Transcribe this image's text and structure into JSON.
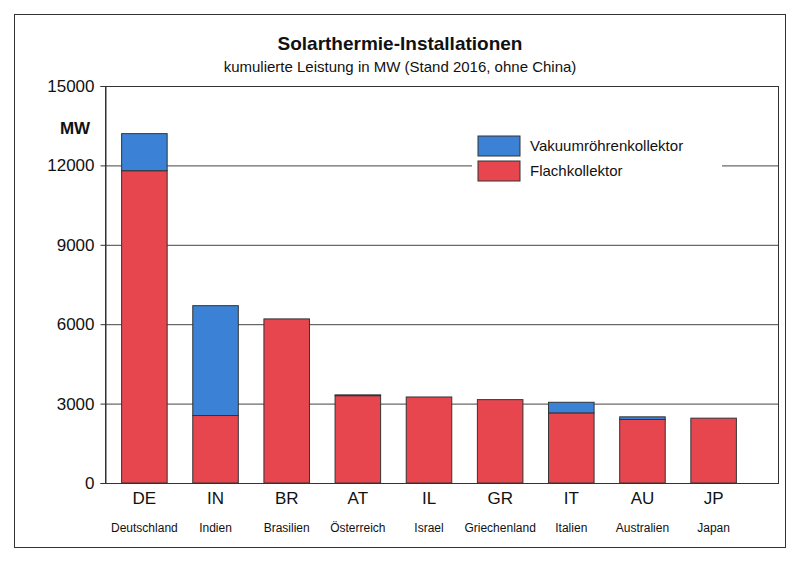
{
  "chart_data": {
    "type": "bar",
    "title": "Solarthermie-Installationen",
    "subtitle": "kumulierte Leistung in MW (Stand 2016, ohne China)",
    "y_label": "MW",
    "categories": [
      "DE",
      "IN",
      "BR",
      "AT",
      "IL",
      "GR",
      "IT",
      "AU",
      "JP"
    ],
    "category_names": [
      "Deutschland",
      "Indien",
      "Brasilien",
      "Österreich",
      "Israel",
      "Griechenland",
      "Italien",
      "Australien",
      "Japan"
    ],
    "series": [
      {
        "name": "Vakuumröhrenkollektor",
        "color": "#3b82d6",
        "values": [
          1400,
          4150,
          0,
          30,
          0,
          0,
          400,
          100,
          0
        ]
      },
      {
        "name": "Flachkollektor",
        "color": "#e8464f",
        "values": [
          11800,
          2550,
          6200,
          3300,
          3250,
          3150,
          2650,
          2400,
          2450
        ]
      }
    ],
    "stacked": true,
    "ylim": [
      0,
      15000
    ],
    "yticks": [
      0,
      3000,
      6000,
      9000,
      12000,
      15000
    ],
    "grid": true,
    "legend": "top-right"
  }
}
